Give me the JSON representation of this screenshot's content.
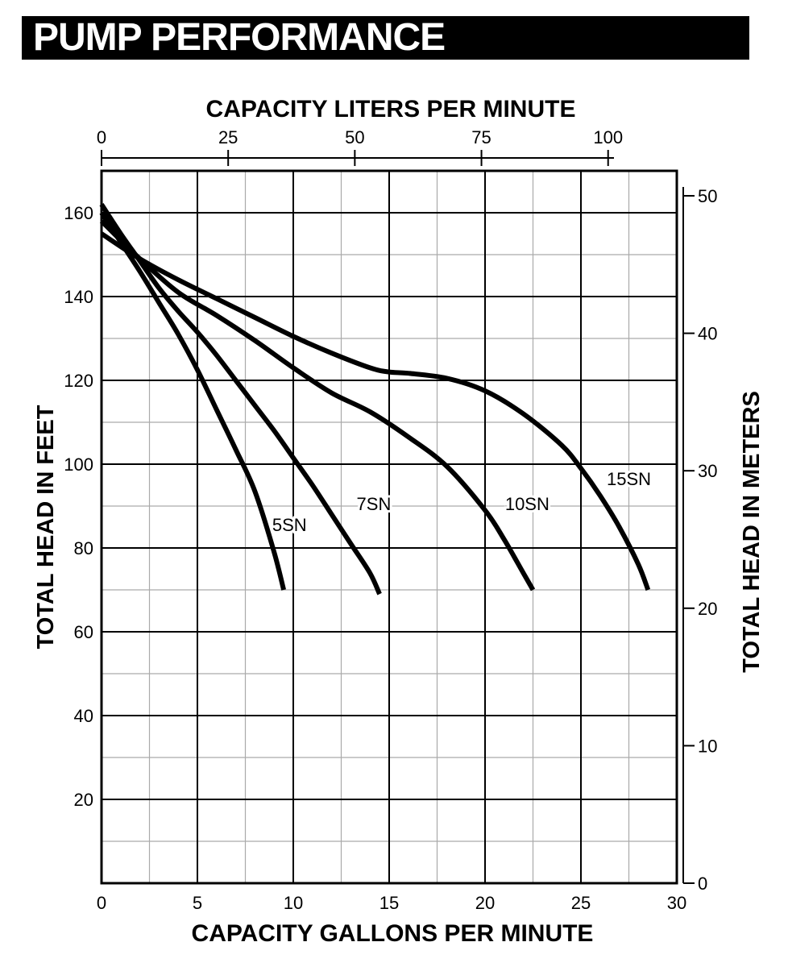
{
  "header": {
    "title": "PUMP PERFORMANCE"
  },
  "chart_data": {
    "type": "line",
    "title": "PUMP PERFORMANCE",
    "xlabel": "CAPACITY GALLONS PER MINUTE",
    "ylabel": "TOTAL HEAD IN FEET",
    "x2label": "CAPACITY LITERS PER MINUTE",
    "y2label": "TOTAL HEAD IN METERS",
    "xlim": [
      0,
      30
    ],
    "ylim": [
      0,
      170
    ],
    "x2lim": [
      0,
      113.56
    ],
    "y2lim": [
      0,
      51.8
    ],
    "x_ticks": [
      0,
      5,
      10,
      15,
      20,
      25,
      30
    ],
    "y_ticks": [
      20,
      40,
      60,
      80,
      100,
      120,
      140,
      160
    ],
    "x2_ticks": [
      0,
      25,
      50,
      75,
      100
    ],
    "y2_ticks": [
      0,
      10,
      20,
      30,
      40,
      50
    ],
    "grid": true,
    "series": [
      {
        "name": "5SN",
        "x": [
          0,
          1,
          2,
          3,
          4,
          5,
          6,
          7,
          8,
          9,
          9.5
        ],
        "y": [
          160,
          153,
          146,
          138.5,
          131,
          122.5,
          113,
          103.5,
          93.5,
          79,
          70
        ]
      },
      {
        "name": "7SN",
        "x": [
          0,
          1,
          2,
          3,
          4,
          5,
          6,
          7,
          8,
          9,
          10,
          11,
          12,
          13,
          14,
          14.5
        ],
        "y": [
          162,
          155,
          148.5,
          142,
          136.5,
          131.5,
          126,
          120,
          114,
          108,
          101.5,
          95,
          88,
          81,
          74,
          69
        ]
      },
      {
        "name": "10SN",
        "x": [
          0,
          2,
          4,
          6,
          8,
          10,
          12,
          14,
          16,
          18,
          20,
          21,
          22,
          22.5
        ],
        "y": [
          158,
          149,
          141,
          135.5,
          129.5,
          123,
          117,
          112.5,
          106.5,
          99.5,
          89,
          82,
          74,
          70
        ]
      },
      {
        "name": "15SN",
        "x": [
          0,
          2,
          4,
          6,
          8,
          10,
          12,
          14,
          15,
          16,
          18,
          20,
          22,
          24,
          25,
          26,
          27,
          28,
          28.5
        ],
        "y": [
          155,
          149,
          144,
          139.5,
          135,
          130.5,
          126.5,
          123,
          122,
          121.7,
          120.5,
          117.5,
          112,
          104.5,
          99,
          92.5,
          85,
          76,
          70
        ]
      }
    ]
  }
}
